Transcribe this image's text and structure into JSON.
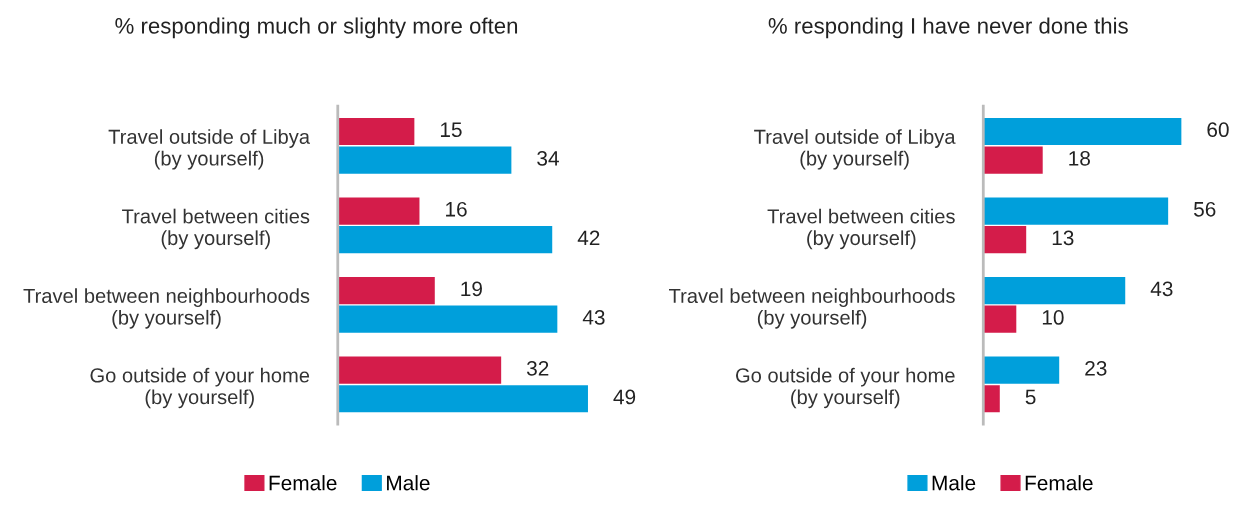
{
  "chart_data": [
    {
      "type": "bar",
      "orientation": "horizontal",
      "title": "% responding much or slighty more often",
      "categories": [
        "Travel outside of Libya\n(by yourself)",
        "Travel between cities\n(by yourself)",
        "Travel between neighbourhoods\n(by yourself)",
        "Go outside of your home\n(by yourself)"
      ],
      "series": [
        {
          "name": "Female",
          "color": "#d41c4a",
          "values": [
            15,
            16,
            19,
            32
          ]
        },
        {
          "name": "Male",
          "color": "#009fdb",
          "values": [
            34,
            42,
            43,
            49
          ]
        }
      ],
      "data_labels": true,
      "legend": "bottom",
      "grid": false
    },
    {
      "type": "bar",
      "orientation": "horizontal",
      "title": "% responding I have never done this",
      "categories": [
        "Travel outside of Libya\n(by yourself)",
        "Travel between cities\n(by yourself)",
        "Travel between neighbourhoods\n(by yourself)",
        "Go outside of your home\n(by yourself)"
      ],
      "series": [
        {
          "name": "Male",
          "color": "#009fdb",
          "values": [
            60,
            56,
            43,
            23
          ]
        },
        {
          "name": "Female",
          "color": "#d41c4a",
          "values": [
            18,
            13,
            10,
            5
          ]
        }
      ],
      "data_labels": true,
      "legend": "bottom",
      "grid": false
    }
  ]
}
